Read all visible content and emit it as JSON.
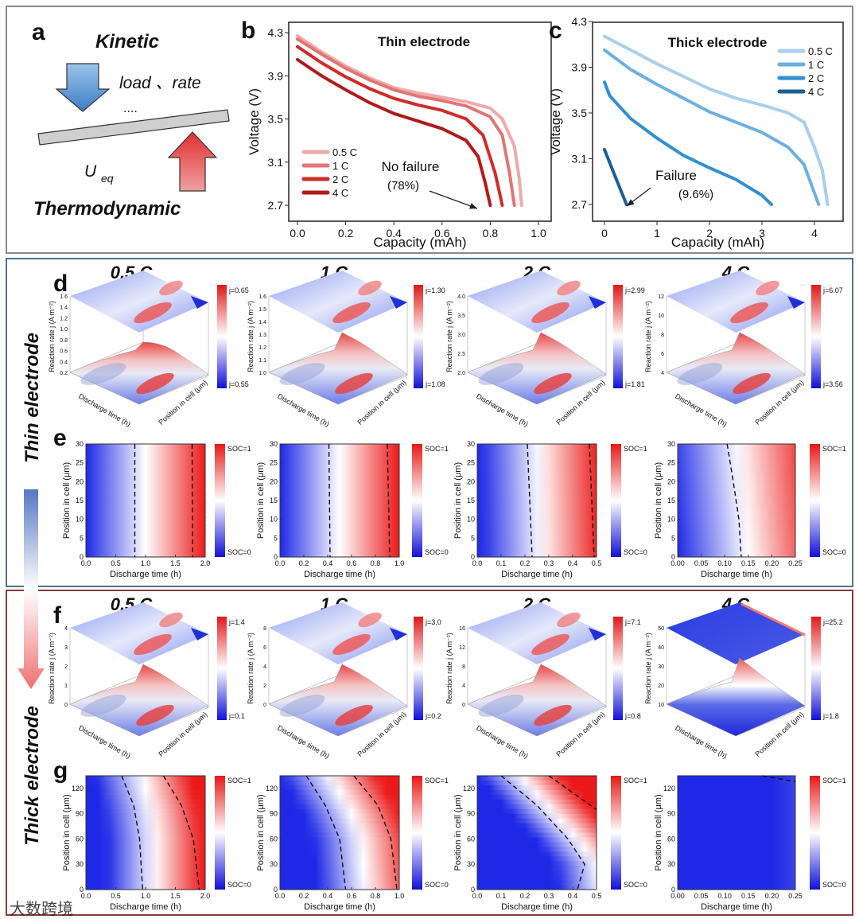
{
  "panel_labels": {
    "a": "a",
    "b": "b",
    "c": "c",
    "d": "d",
    "e": "e",
    "f": "f",
    "g": "g"
  },
  "panel_a": {
    "kinetic": "Kinetic",
    "load_rate": "load 、rate",
    "dots": "....",
    "ueq_main": "U",
    "ueq_sub": "eq",
    "thermodynamic": "Thermodynamic"
  },
  "side_labels": {
    "thin": "Thin electrode",
    "thick": "Thick electrode"
  },
  "rate_titles": [
    "0.5 C",
    "1 C",
    "2 C",
    "4 C"
  ],
  "watermark": "大数跨境",
  "colors": {
    "red": "#e01818",
    "blue": "#1e28e6",
    "thin_box": "#4f7390",
    "thick_box": "#8e3b3b"
  },
  "chart_data": [
    {
      "id": "b",
      "type": "line",
      "title": "Thin electrode",
      "xlabel": "Capacity (mAh)",
      "ylabel": "Voltage (V)",
      "xlim": [
        0,
        1.0
      ],
      "ylim": [
        2.7,
        4.3
      ],
      "xticks": [
        "0.0",
        "0.2",
        "0.4",
        "0.6",
        "0.8",
        "1.0"
      ],
      "yticks": [
        "2.7",
        "3.1",
        "3.5",
        "3.9",
        "4.3"
      ],
      "legend": "bottom-left",
      "annotation": {
        "text": "No failure",
        "sub": "(78%)"
      },
      "series": [
        {
          "name": "0.5 C",
          "color": "#f0a9a9",
          "points": [
            [
              0,
              4.27
            ],
            [
              0.1,
              4.12
            ],
            [
              0.2,
              3.99
            ],
            [
              0.3,
              3.88
            ],
            [
              0.4,
              3.79
            ],
            [
              0.5,
              3.74
            ],
            [
              0.6,
              3.7
            ],
            [
              0.7,
              3.66
            ],
            [
              0.8,
              3.6
            ],
            [
              0.85,
              3.5
            ],
            [
              0.9,
              3.25
            ],
            [
              0.92,
              2.95
            ],
            [
              0.93,
              2.7
            ]
          ]
        },
        {
          "name": "1 C",
          "color": "#e07575",
          "points": [
            [
              0,
              4.24
            ],
            [
              0.1,
              4.1
            ],
            [
              0.2,
              3.97
            ],
            [
              0.3,
              3.86
            ],
            [
              0.4,
              3.77
            ],
            [
              0.5,
              3.71
            ],
            [
              0.6,
              3.67
            ],
            [
              0.7,
              3.62
            ],
            [
              0.8,
              3.52
            ],
            [
              0.85,
              3.35
            ],
            [
              0.88,
              3.0
            ],
            [
              0.9,
              2.7
            ]
          ]
        },
        {
          "name": "2 C",
          "color": "#d02a2a",
          "points": [
            [
              0,
              4.17
            ],
            [
              0.1,
              4.02
            ],
            [
              0.2,
              3.89
            ],
            [
              0.3,
              3.78
            ],
            [
              0.4,
              3.69
            ],
            [
              0.5,
              3.63
            ],
            [
              0.6,
              3.58
            ],
            [
              0.7,
              3.5
            ],
            [
              0.77,
              3.35
            ],
            [
              0.82,
              3.0
            ],
            [
              0.85,
              2.7
            ]
          ]
        },
        {
          "name": "4 C",
          "color": "#b01a1a",
          "points": [
            [
              0,
              4.05
            ],
            [
              0.1,
              3.9
            ],
            [
              0.2,
              3.77
            ],
            [
              0.3,
              3.65
            ],
            [
              0.4,
              3.55
            ],
            [
              0.5,
              3.48
            ],
            [
              0.6,
              3.41
            ],
            [
              0.7,
              3.3
            ],
            [
              0.75,
              3.15
            ],
            [
              0.78,
              2.9
            ],
            [
              0.8,
              2.7
            ]
          ]
        }
      ]
    },
    {
      "id": "c",
      "type": "line",
      "title": "Thick electrode",
      "xlabel": "Capacity (mAh)",
      "ylabel": "Voltage (V)",
      "xlim": [
        0,
        4.5
      ],
      "ylim": [
        2.7,
        4.3
      ],
      "xticks": [
        "0",
        "1",
        "2",
        "3",
        "4"
      ],
      "yticks": [
        "2.7",
        "3.1",
        "3.5",
        "3.9",
        "4.3"
      ],
      "legend": "top-right",
      "annotation": {
        "text": "Failure",
        "sub": "(9.6%)"
      },
      "series": [
        {
          "name": "0.5 C",
          "color": "#a9cfea",
          "points": [
            [
              0,
              4.17
            ],
            [
              0.5,
              4.05
            ],
            [
              1,
              3.93
            ],
            [
              1.5,
              3.82
            ],
            [
              2,
              3.71
            ],
            [
              2.5,
              3.63
            ],
            [
              3,
              3.57
            ],
            [
              3.5,
              3.5
            ],
            [
              3.8,
              3.42
            ],
            [
              4.0,
              3.2
            ],
            [
              4.15,
              3.0
            ],
            [
              4.25,
              2.7
            ]
          ]
        },
        {
          "name": "1 C",
          "color": "#6cb0e0",
          "points": [
            [
              0,
              4.05
            ],
            [
              0.5,
              3.88
            ],
            [
              1,
              3.75
            ],
            [
              1.5,
              3.63
            ],
            [
              2,
              3.51
            ],
            [
              2.5,
              3.42
            ],
            [
              3,
              3.33
            ],
            [
              3.5,
              3.2
            ],
            [
              3.8,
              3.05
            ],
            [
              4.0,
              2.8
            ],
            [
              4.08,
              2.7
            ]
          ]
        },
        {
          "name": "2 C",
          "color": "#3090d0",
          "points": [
            [
              0,
              3.77
            ],
            [
              0.1,
              3.65
            ],
            [
              0.5,
              3.45
            ],
            [
              1,
              3.28
            ],
            [
              1.5,
              3.13
            ],
            [
              2,
              3.02
            ],
            [
              2.5,
              2.92
            ],
            [
              3,
              2.78
            ],
            [
              3.18,
              2.7
            ]
          ]
        },
        {
          "name": "4 C",
          "color": "#1b5f98",
          "points": [
            [
              0,
              3.18
            ],
            [
              0.2,
              2.95
            ],
            [
              0.42,
              2.7
            ]
          ]
        }
      ]
    },
    {
      "id": "d",
      "type": "surface",
      "zlabel": "Reaction rate j (A m⁻²)",
      "xlabel": "Discharge time (h)",
      "ylabel": "Position in cell (μm)",
      "panels": [
        {
          "rate": "0.5 C",
          "j_max": "j=0.65",
          "j_min": "j=0.55",
          "zticks": [
            "0.2",
            "0.4",
            "0.6",
            "0.8",
            "1.0",
            "1.2",
            "1.4",
            "1.6"
          ]
        },
        {
          "rate": "1 C",
          "j_max": "j=1.30",
          "j_min": "j=1.08",
          "zticks": [
            "1.0",
            "1.1",
            "1.2",
            "1.3",
            "1.4",
            "1.5",
            "1.6"
          ]
        },
        {
          "rate": "2 C",
          "j_max": "j=2.99",
          "j_min": "j=1.81",
          "zticks": [
            "2.0",
            "2.5",
            "3.0",
            "3.5",
            "4.0"
          ]
        },
        {
          "rate": "4 C",
          "j_max": "j=6.07",
          "j_min": "j=3.56",
          "zticks": [
            "4",
            "6",
            "8",
            "10",
            "12"
          ]
        }
      ]
    },
    {
      "id": "e",
      "type": "heatmap",
      "xlabel": "Discharge time (h)",
      "ylabel": "Position in cell (μm)",
      "cbar_max": "SOC=1",
      "cbar_min": "SOC=0",
      "yticks": [
        "0",
        "5",
        "10",
        "15",
        "20",
        "25",
        "30"
      ],
      "ylim": [
        0,
        30
      ],
      "panels": [
        {
          "xlim": [
            0,
            2.0
          ],
          "xticks": [
            "0.0",
            "0.5",
            "1.0",
            "1.5",
            "2.0"
          ],
          "soc_half_front": [
            [
              0,
              1.0
            ],
            [
              30,
              1.0
            ]
          ],
          "soc_range": 2.0,
          "dashed": [
            [
              [
                0.82,
                30
              ],
              [
                0.82,
                0
              ]
            ],
            [
              [
                1.78,
                30
              ],
              [
                1.79,
                0
              ]
            ]
          ]
        },
        {
          "xlim": [
            0,
            1.0
          ],
          "xticks": [
            "0.0",
            "0.2",
            "0.4",
            "0.6",
            "0.8",
            "1.0"
          ],
          "soc_half_front": [
            [
              0,
              0.5
            ],
            [
              30,
              0.5
            ]
          ],
          "soc_range": 1.0,
          "dashed": [
            [
              [
                0.41,
                30
              ],
              [
                0.42,
                0
              ]
            ],
            [
              [
                0.9,
                30
              ],
              [
                0.92,
                0
              ]
            ]
          ]
        },
        {
          "xlim": [
            0,
            0.5
          ],
          "xticks": [
            "0.0",
            "0.1",
            "0.2",
            "0.3",
            "0.4",
            "0.5"
          ],
          "soc_half_front": [
            [
              0,
              0.27
            ],
            [
              30,
              0.26
            ]
          ],
          "soc_range": 0.5,
          "dashed": [
            [
              [
                0.21,
                30
              ],
              [
                0.23,
                0
              ]
            ],
            [
              [
                0.47,
                30
              ],
              [
                0.49,
                0
              ]
            ]
          ]
        },
        {
          "xlim": [
            0,
            0.25
          ],
          "xticks": [
            "0.00",
            "0.05",
            "0.10",
            "0.15",
            "0.20",
            "0.25"
          ],
          "soc_half_front": [
            [
              0,
              0.15
            ],
            [
              30,
              0.13
            ]
          ],
          "soc_range": 0.3,
          "dashed": [
            [
              [
                0.105,
                30
              ],
              [
                0.118,
                20
              ],
              [
                0.13,
                10
              ],
              [
                0.135,
                0
              ]
            ]
          ]
        }
      ]
    },
    {
      "id": "f",
      "type": "surface",
      "zlabel": "Reaction rate j (A m⁻²)",
      "xlabel": "Discharge time (h)",
      "ylabel": "Position in cell (μm)",
      "panels": [
        {
          "rate": "0.5 C",
          "j_max": "j=1.4",
          "j_min": "j=0.1",
          "zticks": [
            "0",
            "1",
            "2",
            "3",
            "4"
          ]
        },
        {
          "rate": "1 C",
          "j_max": "j=3.0",
          "j_min": "j=0.2",
          "zticks": [
            "0",
            "2",
            "4",
            "6",
            "8"
          ]
        },
        {
          "rate": "2 C",
          "j_max": "j=7.1",
          "j_min": "j=0.8",
          "zticks": [
            "0",
            "4",
            "8",
            "12",
            "16"
          ]
        },
        {
          "rate": "4 C",
          "j_max": "j=25.2",
          "j_min": "j=1.8",
          "zticks": [
            "10",
            "20",
            "30",
            "40",
            "50"
          ]
        }
      ]
    },
    {
      "id": "g",
      "type": "heatmap",
      "xlabel": "Discharge time (h)",
      "ylabel": "Position in cell (μm)",
      "cbar_max": "SOC=1",
      "cbar_min": "SOC=0",
      "yticks": [
        "0",
        "30",
        "60",
        "90",
        "120"
      ],
      "ylim": [
        0,
        135
      ],
      "panels": [
        {
          "xlim": [
            0,
            2.0
          ],
          "xticks": [
            "0.0",
            "0.5",
            "1.0",
            "1.5",
            "2.0"
          ],
          "soc_half_front": [
            [
              0,
              1.15
            ],
            [
              60,
              1.15
            ],
            [
              90,
              1.1
            ],
            [
              135,
              0.95
            ]
          ],
          "soc_range": 1.6,
          "dashed": [
            [
              [
                0.6,
                135
              ],
              [
                0.8,
                100
              ],
              [
                0.9,
                60
              ],
              [
                0.95,
                0
              ]
            ],
            [
              [
                1.3,
                135
              ],
              [
                1.6,
                100
              ],
              [
                1.8,
                60
              ],
              [
                1.9,
                0
              ]
            ]
          ]
        },
        {
          "xlim": [
            0,
            1.0
          ],
          "xticks": [
            "0.0",
            "0.2",
            "0.4",
            "0.6",
            "0.8",
            "1.0"
          ],
          "soc_half_front": [
            [
              0,
              0.72
            ],
            [
              60,
              0.68
            ],
            [
              90,
              0.6
            ],
            [
              135,
              0.42
            ]
          ],
          "soc_range": 0.8,
          "dashed": [
            [
              [
                0.22,
                135
              ],
              [
                0.38,
                100
              ],
              [
                0.5,
                60
              ],
              [
                0.55,
                0
              ]
            ],
            [
              [
                0.62,
                135
              ],
              [
                0.82,
                100
              ],
              [
                0.93,
                60
              ],
              [
                0.98,
                0
              ]
            ]
          ]
        },
        {
          "xlim": [
            0,
            0.5
          ],
          "xticks": [
            "0.0",
            "0.1",
            "0.2",
            "0.3",
            "0.4",
            "0.5"
          ],
          "soc_half_front": [
            [
              0,
              0.52
            ],
            [
              30,
              0.5
            ],
            [
              60,
              0.42
            ],
            [
              90,
              0.32
            ],
            [
              135,
              0.18
            ]
          ],
          "soc_range": 0.35,
          "dashed": [
            [
              [
                0.1,
                135
              ],
              [
                0.25,
                100
              ],
              [
                0.38,
                60
              ],
              [
                0.45,
                30
              ],
              [
                0.42,
                0
              ]
            ],
            [
              [
                0.3,
                135
              ],
              [
                0.4,
                115
              ],
              [
                0.5,
                95
              ]
            ]
          ]
        },
        {
          "xlim": [
            0,
            0.25
          ],
          "xticks": [
            "0.00",
            "0.05",
            "0.10",
            "0.15",
            "0.20",
            "0.25"
          ],
          "soc_half_front": [
            [
              0,
              0.6
            ],
            [
              135,
              0.6
            ]
          ],
          "soc_range": 0.8,
          "dashed": [
            [
              [
                0.18,
                135
              ],
              [
                0.22,
                131
              ],
              [
                0.25,
                128
              ]
            ]
          ]
        }
      ]
    }
  ]
}
